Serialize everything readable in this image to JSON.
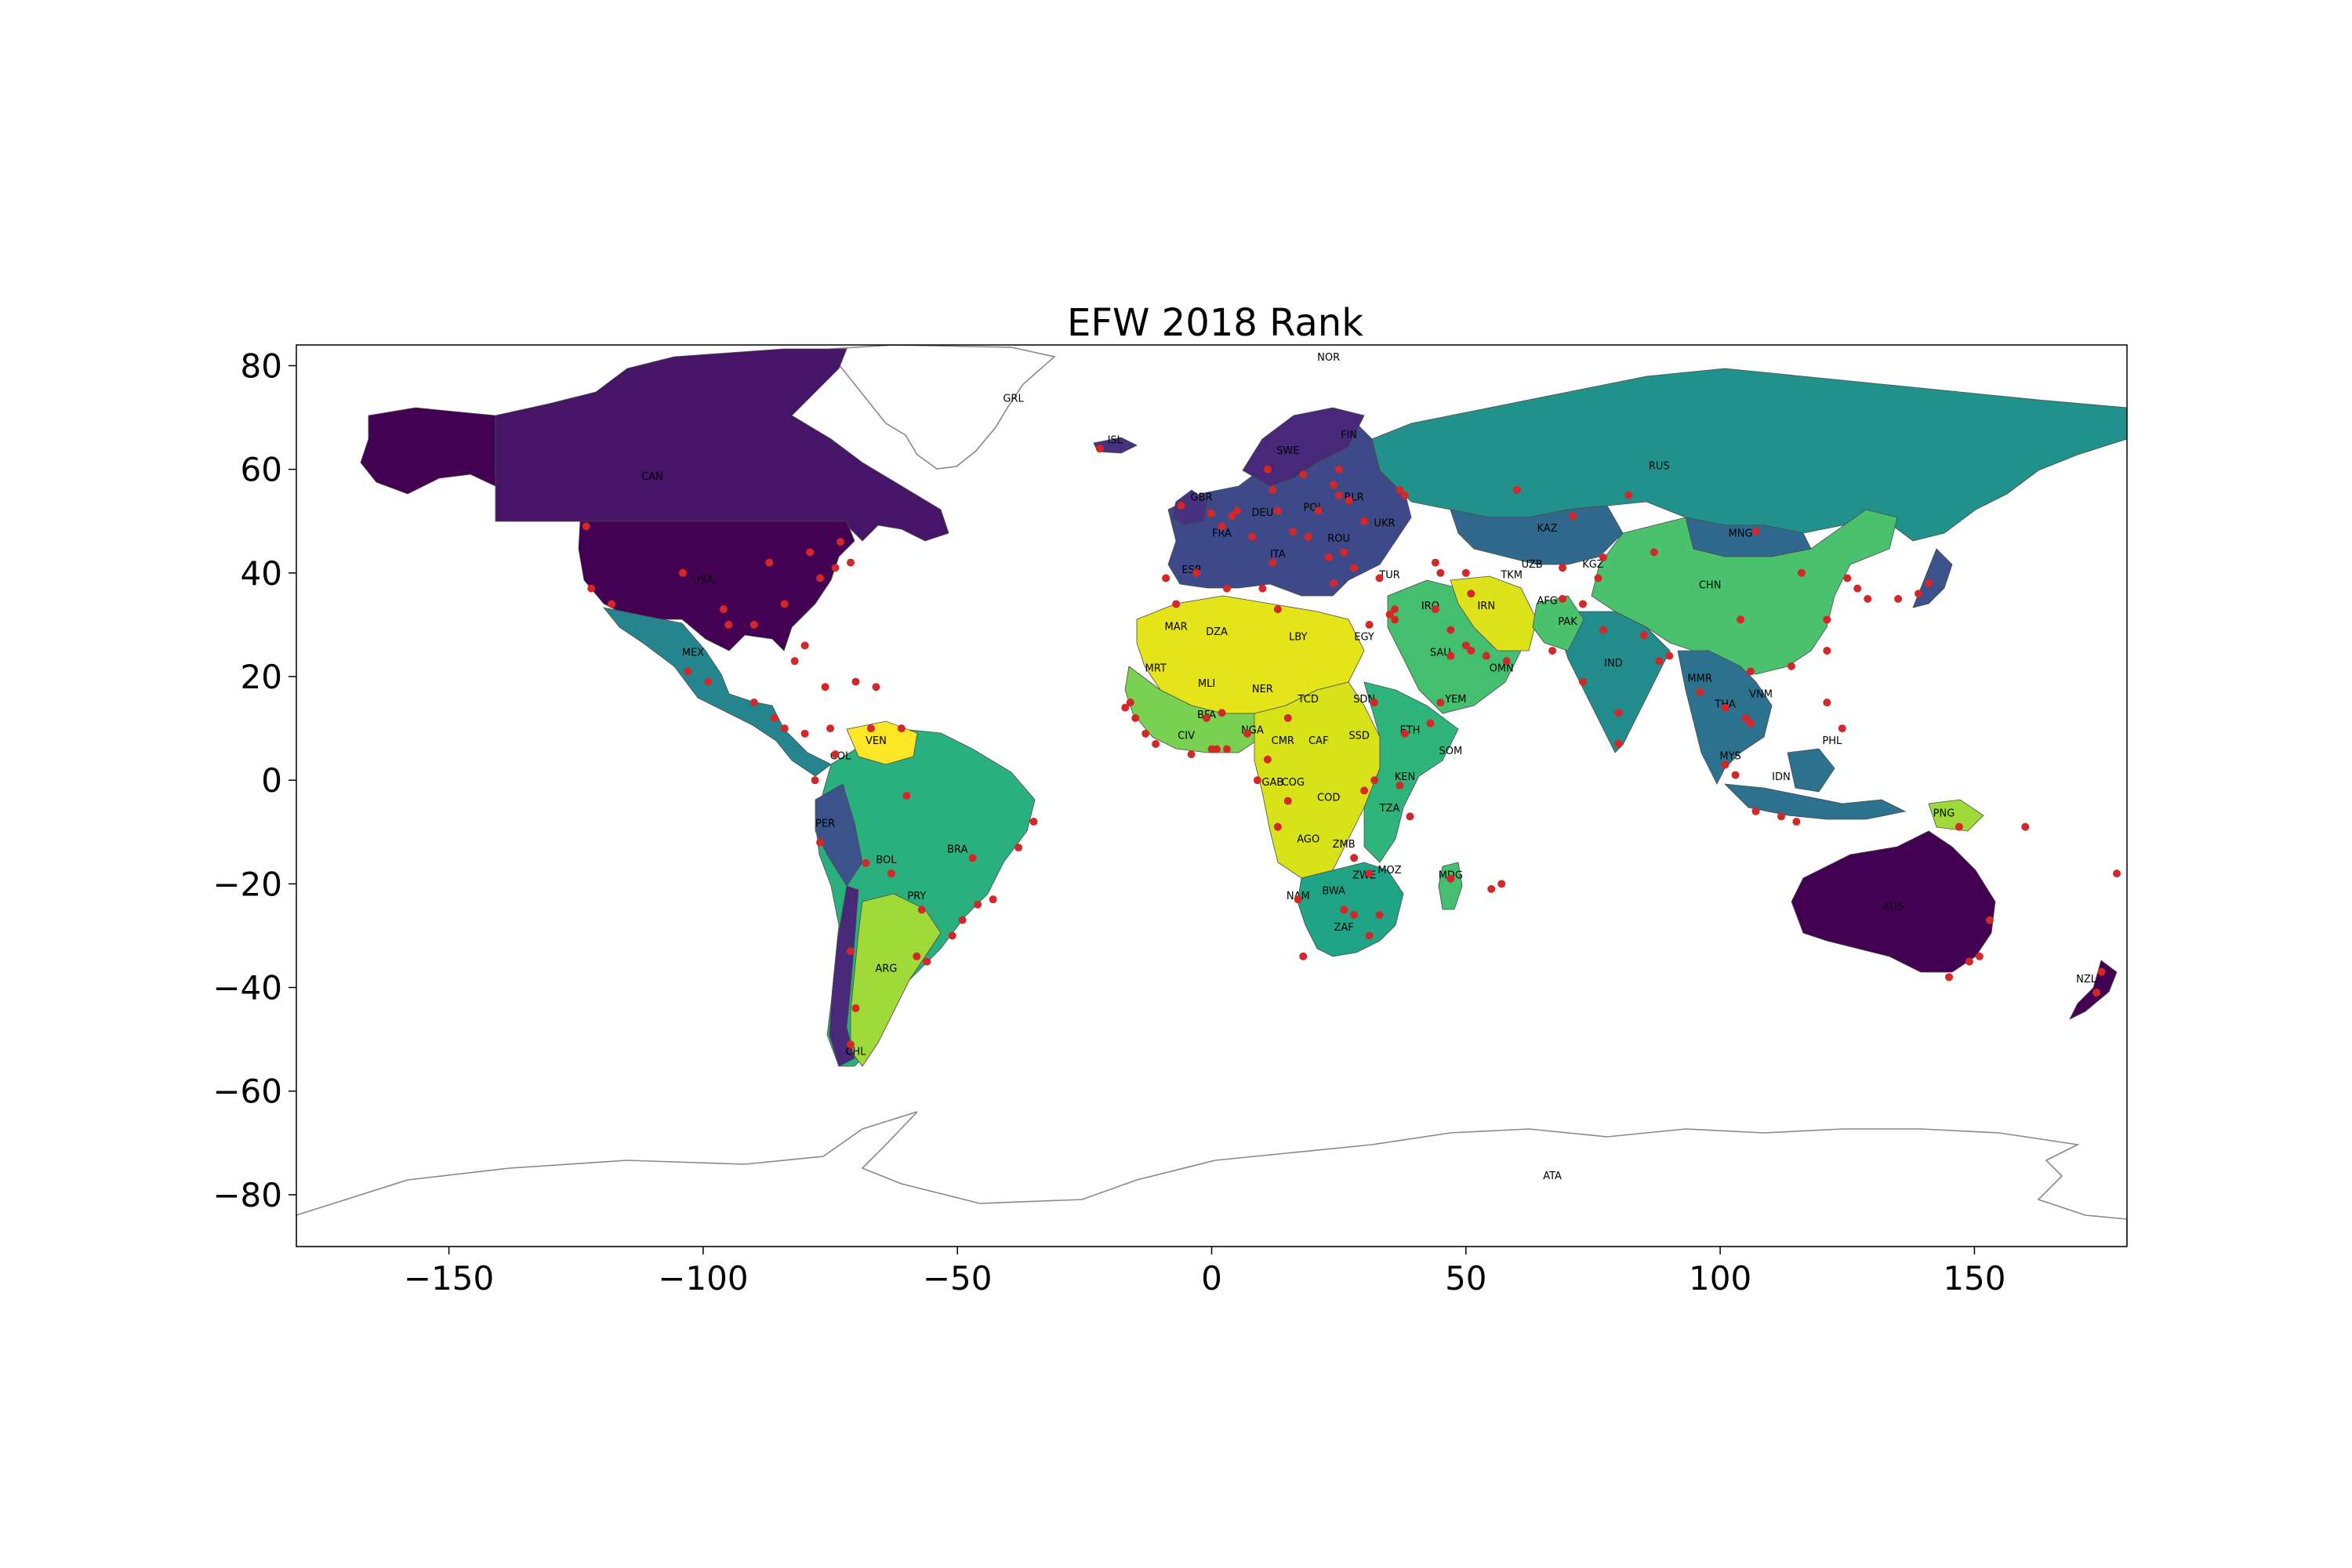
{
  "chart_data": {
    "type": "map",
    "title": "EFW 2018 Rank",
    "xlabel": "",
    "ylabel": "",
    "xlim": [
      -180,
      180
    ],
    "ylim": [
      -90,
      84
    ],
    "x_ticks": [
      -150,
      -100,
      -50,
      0,
      50,
      100,
      150
    ],
    "y_ticks": [
      80,
      60,
      40,
      20,
      0,
      -20,
      -40,
      -60,
      -80
    ],
    "x_tick_labels": [
      "−150",
      "−100",
      "−50",
      "0",
      "50",
      "100",
      "150"
    ],
    "y_tick_labels": [
      "80",
      "60",
      "40",
      "20",
      "0",
      "−20",
      "−40",
      "−60",
      "−80"
    ],
    "colormap": "viridis",
    "no_data_color": "#ffffff",
    "point_color": "#d62728",
    "country_labels": [
      {
        "code": "CAN",
        "lon": -110,
        "lat": 58
      },
      {
        "code": "USA",
        "lon": -100,
        "lat": 38
      },
      {
        "code": "MEX",
        "lon": -102,
        "lat": 24
      },
      {
        "code": "GRL",
        "lon": -39,
        "lat": 73
      },
      {
        "code": "ISL",
        "lon": -19,
        "lat": 65
      },
      {
        "code": "NOR",
        "lon": 23,
        "lat": 81
      },
      {
        "code": "SWE",
        "lon": 15,
        "lat": 63
      },
      {
        "code": "FIN",
        "lon": 27,
        "lat": 66
      },
      {
        "code": "GBR",
        "lon": -2,
        "lat": 54
      },
      {
        "code": "FRA",
        "lon": 2,
        "lat": 47
      },
      {
        "code": "DEU",
        "lon": 10,
        "lat": 51
      },
      {
        "code": "POL",
        "lon": 20,
        "lat": 52
      },
      {
        "code": "BLR",
        "lon": 28,
        "lat": 54
      },
      {
        "code": "UKR",
        "lon": 34,
        "lat": 49
      },
      {
        "code": "ROU",
        "lon": 25,
        "lat": 46
      },
      {
        "code": "ITA",
        "lon": 13,
        "lat": 43
      },
      {
        "code": "ESP",
        "lon": -4,
        "lat": 40
      },
      {
        "code": "TUR",
        "lon": 35,
        "lat": 39
      },
      {
        "code": "RUS",
        "lon": 88,
        "lat": 60
      },
      {
        "code": "KAZ",
        "lon": 66,
        "lat": 48
      },
      {
        "code": "MNG",
        "lon": 104,
        "lat": 47
      },
      {
        "code": "CHN",
        "lon": 98,
        "lat": 37
      },
      {
        "code": "UZB",
        "lon": 63,
        "lat": 41
      },
      {
        "code": "TKM",
        "lon": 59,
        "lat": 39
      },
      {
        "code": "KGZ",
        "lon": 75,
        "lat": 41
      },
      {
        "code": "AFG",
        "lon": 66,
        "lat": 34
      },
      {
        "code": "PAK",
        "lon": 70,
        "lat": 30
      },
      {
        "code": "IRN",
        "lon": 54,
        "lat": 33
      },
      {
        "code": "IRQ",
        "lon": 43,
        "lat": 33
      },
      {
        "code": "SAU",
        "lon": 45,
        "lat": 24
      },
      {
        "code": "OMN",
        "lon": 57,
        "lat": 21
      },
      {
        "code": "YEM",
        "lon": 48,
        "lat": 15
      },
      {
        "code": "IND",
        "lon": 79,
        "lat": 22
      },
      {
        "code": "MMR",
        "lon": 96,
        "lat": 19
      },
      {
        "code": "THA",
        "lon": 101,
        "lat": 14
      },
      {
        "code": "VNM",
        "lon": 108,
        "lat": 16
      },
      {
        "code": "PHL",
        "lon": 122,
        "lat": 7
      },
      {
        "code": "MYS",
        "lon": 102,
        "lat": 4
      },
      {
        "code": "IDN",
        "lon": 112,
        "lat": 0
      },
      {
        "code": "PNG",
        "lon": 144,
        "lat": -7
      },
      {
        "code": "AUS",
        "lon": 134,
        "lat": -25
      },
      {
        "code": "NZL",
        "lon": 172,
        "lat": -39
      },
      {
        "code": "MAR",
        "lon": -7,
        "lat": 29
      },
      {
        "code": "DZA",
        "lon": 1,
        "lat": 28
      },
      {
        "code": "LBY",
        "lon": 17,
        "lat": 27
      },
      {
        "code": "EGY",
        "lon": 30,
        "lat": 27
      },
      {
        "code": "MRT",
        "lon": -11,
        "lat": 21
      },
      {
        "code": "MLI",
        "lon": -1,
        "lat": 18
      },
      {
        "code": "NER",
        "lon": 10,
        "lat": 17
      },
      {
        "code": "TCD",
        "lon": 19,
        "lat": 15
      },
      {
        "code": "SDN",
        "lon": 30,
        "lat": 15
      },
      {
        "code": "ETH",
        "lon": 39,
        "lat": 9
      },
      {
        "code": "SOM",
        "lon": 47,
        "lat": 5
      },
      {
        "code": "SSD",
        "lon": 29,
        "lat": 8
      },
      {
        "code": "BFA",
        "lon": -1,
        "lat": 12
      },
      {
        "code": "CIV",
        "lon": -5,
        "lat": 8
      },
      {
        "code": "NGA",
        "lon": 8,
        "lat": 9
      },
      {
        "code": "CMR",
        "lon": 14,
        "lat": 7
      },
      {
        "code": "CAF",
        "lon": 21,
        "lat": 7
      },
      {
        "code": "GAB",
        "lon": 12,
        "lat": -1
      },
      {
        "code": "COG",
        "lon": 16,
        "lat": -1
      },
      {
        "code": "COD",
        "lon": 23,
        "lat": -4
      },
      {
        "code": "KEN",
        "lon": 38,
        "lat": 0
      },
      {
        "code": "TZA",
        "lon": 35,
        "lat": -6
      },
      {
        "code": "AGO",
        "lon": 19,
        "lat": -12
      },
      {
        "code": "ZMB",
        "lon": 26,
        "lat": -13
      },
      {
        "code": "MOZ",
        "lon": 35,
        "lat": -18
      },
      {
        "code": "ZWE",
        "lon": 30,
        "lat": -19
      },
      {
        "code": "MDG",
        "lon": 47,
        "lat": -19
      },
      {
        "code": "NAM",
        "lon": 17,
        "lat": -23
      },
      {
        "code": "BWA",
        "lon": 24,
        "lat": -22
      },
      {
        "code": "ZAF",
        "lon": 26,
        "lat": -29
      },
      {
        "code": "VEN",
        "lon": -66,
        "lat": 7
      },
      {
        "code": "COL",
        "lon": -73,
        "lat": 4
      },
      {
        "code": "PER",
        "lon": -76,
        "lat": -9
      },
      {
        "code": "BRA",
        "lon": -50,
        "lat": -14
      },
      {
        "code": "BOL",
        "lon": -64,
        "lat": -16
      },
      {
        "code": "PRY",
        "lon": -58,
        "lat": -23
      },
      {
        "code": "ARG",
        "lon": -64,
        "lat": -37
      },
      {
        "code": "CHL",
        "lon": -70,
        "lat": -53
      },
      {
        "code": "ATA",
        "lon": 67,
        "lat": -77
      }
    ],
    "points": [
      {
        "lon": -123,
        "lat": 49
      },
      {
        "lon": -122,
        "lat": 37
      },
      {
        "lon": -118,
        "lat": 34
      },
      {
        "lon": -104,
        "lat": 40
      },
      {
        "lon": -96,
        "lat": 33
      },
      {
        "lon": -95,
        "lat": 30
      },
      {
        "lon": -90,
        "lat": 30
      },
      {
        "lon": -87,
        "lat": 42
      },
      {
        "lon": -84,
        "lat": 34
      },
      {
        "lon": -80,
        "lat": 26
      },
      {
        "lon": -77,
        "lat": 39
      },
      {
        "lon": -74,
        "lat": 41
      },
      {
        "lon": -71,
        "lat": 42
      },
      {
        "lon": -79,
        "lat": 44
      },
      {
        "lon": -73,
        "lat": 46
      },
      {
        "lon": -99,
        "lat": 19
      },
      {
        "lon": -103,
        "lat": 21
      },
      {
        "lon": -90,
        "lat": 15
      },
      {
        "lon": -86,
        "lat": 12
      },
      {
        "lon": -84,
        "lat": 10
      },
      {
        "lon": -80,
        "lat": 9
      },
      {
        "lon": -76,
        "lat": 18
      },
      {
        "lon": -70,
        "lat": 19
      },
      {
        "lon": -66,
        "lat": 18
      },
      {
        "lon": -82,
        "lat": 23
      },
      {
        "lon": -74,
        "lat": 5
      },
      {
        "lon": -75,
        "lat": 10
      },
      {
        "lon": -67,
        "lat": 10
      },
      {
        "lon": -61,
        "lat": 10
      },
      {
        "lon": -78,
        "lat": 0
      },
      {
        "lon": -77,
        "lat": -12
      },
      {
        "lon": -68,
        "lat": -16
      },
      {
        "lon": -63,
        "lat": -18
      },
      {
        "lon": -57,
        "lat": -25
      },
      {
        "lon": -56,
        "lat": -35
      },
      {
        "lon": -58,
        "lat": -34
      },
      {
        "lon": -71,
        "lat": -33
      },
      {
        "lon": -47,
        "lat": -15
      },
      {
        "lon": -43,
        "lat": -23
      },
      {
        "lon": -46,
        "lat": -24
      },
      {
        "lon": -38,
        "lat": -13
      },
      {
        "lon": -35,
        "lat": -8
      },
      {
        "lon": -60,
        "lat": -3
      },
      {
        "lon": -51,
        "lat": -30
      },
      {
        "lon": -49,
        "lat": -27
      },
      {
        "lon": -70,
        "lat": -44
      },
      {
        "lon": -71,
        "lat": -51
      },
      {
        "lon": -22,
        "lat": 64
      },
      {
        "lon": -0.1,
        "lat": 51.5
      },
      {
        "lon": -6,
        "lat": 53
      },
      {
        "lon": -3,
        "lat": 40
      },
      {
        "lon": -9,
        "lat": 39
      },
      {
        "lon": 2,
        "lat": 49
      },
      {
        "lon": 4,
        "lat": 51
      },
      {
        "lon": 5,
        "lat": 52
      },
      {
        "lon": 13,
        "lat": 52
      },
      {
        "lon": 8,
        "lat": 47
      },
      {
        "lon": 12,
        "lat": 42
      },
      {
        "lon": 16,
        "lat": 48
      },
      {
        "lon": 21,
        "lat": 52
      },
      {
        "lon": 19,
        "lat": 47
      },
      {
        "lon": 26,
        "lat": 44
      },
      {
        "lon": 23,
        "lat": 43
      },
      {
        "lon": 24,
        "lat": 38
      },
      {
        "lon": 28,
        "lat": 41
      },
      {
        "lon": 33,
        "lat": 39
      },
      {
        "lon": 30,
        "lat": 50
      },
      {
        "lon": 27,
        "lat": 54
      },
      {
        "lon": 18,
        "lat": 59
      },
      {
        "lon": 11,
        "lat": 60
      },
      {
        "lon": 25,
        "lat": 60
      },
      {
        "lon": 12,
        "lat": 56
      },
      {
        "lon": 24,
        "lat": 57
      },
      {
        "lon": 25,
        "lat": 55
      },
      {
        "lon": 37,
        "lat": 56
      },
      {
        "lon": 44,
        "lat": 42
      },
      {
        "lon": 45,
        "lat": 40
      },
      {
        "lon": 50,
        "lat": 40
      },
      {
        "lon": 36,
        "lat": 33
      },
      {
        "lon": 35,
        "lat": 32
      },
      {
        "lon": 36,
        "lat": 31
      },
      {
        "lon": 44,
        "lat": 33
      },
      {
        "lon": 51,
        "lat": 36
      },
      {
        "lon": 47,
        "lat": 29
      },
      {
        "lon": 50,
        "lat": 26
      },
      {
        "lon": 51,
        "lat": 25
      },
      {
        "lon": 54,
        "lat": 24
      },
      {
        "lon": 58,
        "lat": 23
      },
      {
        "lon": 47,
        "lat": 24
      },
      {
        "lon": 45,
        "lat": 15
      },
      {
        "lon": 31,
        "lat": 30
      },
      {
        "lon": 13,
        "lat": 33
      },
      {
        "lon": 10,
        "lat": 37
      },
      {
        "lon": 3,
        "lat": 37
      },
      {
        "lon": -7,
        "lat": 34
      },
      {
        "lon": -16,
        "lat": 15
      },
      {
        "lon": -17,
        "lat": 14
      },
      {
        "lon": -15,
        "lat": 12
      },
      {
        "lon": -13,
        "lat": 9
      },
      {
        "lon": -11,
        "lat": 7
      },
      {
        "lon": -4,
        "lat": 5
      },
      {
        "lon": -1,
        "lat": 12
      },
      {
        "lon": 2,
        "lat": 13
      },
      {
        "lon": 0,
        "lat": 6
      },
      {
        "lon": 1,
        "lat": 6
      },
      {
        "lon": 3,
        "lat": 6
      },
      {
        "lon": 7,
        "lat": 9
      },
      {
        "lon": 11,
        "lat": 4
      },
      {
        "lon": 15,
        "lat": 12
      },
      {
        "lon": 9,
        "lat": 0
      },
      {
        "lon": 15,
        "lat": -4
      },
      {
        "lon": 32,
        "lat": 15
      },
      {
        "lon": 38,
        "lat": 9
      },
      {
        "lon": 43,
        "lat": 11
      },
      {
        "lon": 37,
        "lat": -1
      },
      {
        "lon": 32,
        "lat": 0
      },
      {
        "lon": 30,
        "lat": -2
      },
      {
        "lon": 39,
        "lat": -7
      },
      {
        "lon": 13,
        "lat": -9
      },
      {
        "lon": 28,
        "lat": -15
      },
      {
        "lon": 31,
        "lat": -18
      },
      {
        "lon": 33,
        "lat": -26
      },
      {
        "lon": 17,
        "lat": -23
      },
      {
        "lon": 26,
        "lat": -25
      },
      {
        "lon": 28,
        "lat": -26
      },
      {
        "lon": 18,
        "lat": -34
      },
      {
        "lon": 31,
        "lat": -30
      },
      {
        "lon": 47,
        "lat": -19
      },
      {
        "lon": 57,
        "lat": -20
      },
      {
        "lon": 55,
        "lat": -21
      },
      {
        "lon": 69,
        "lat": 35
      },
      {
        "lon": 73,
        "lat": 34
      },
      {
        "lon": 67,
        "lat": 25
      },
      {
        "lon": 77,
        "lat": 29
      },
      {
        "lon": 73,
        "lat": 19
      },
      {
        "lon": 80,
        "lat": 13
      },
      {
        "lon": 88,
        "lat": 23
      },
      {
        "lon": 80,
        "lat": 7
      },
      {
        "lon": 85,
        "lat": 28
      },
      {
        "lon": 90,
        "lat": 24
      },
      {
        "lon": 96,
        "lat": 17
      },
      {
        "lon": 101,
        "lat": 14
      },
      {
        "lon": 106,
        "lat": 11
      },
      {
        "lon": 106,
        "lat": 21
      },
      {
        "lon": 105,
        "lat": 12
      },
      {
        "lon": 103,
        "lat": 1
      },
      {
        "lon": 101,
        "lat": 3
      },
      {
        "lon": 107,
        "lat": -6
      },
      {
        "lon": 112,
        "lat": -7
      },
      {
        "lon": 115,
        "lat": -8
      },
      {
        "lon": 121,
        "lat": 15
      },
      {
        "lon": 124,
        "lat": 10
      },
      {
        "lon": 121,
        "lat": 25
      },
      {
        "lon": 114,
        "lat": 22
      },
      {
        "lon": 121,
        "lat": 31
      },
      {
        "lon": 116,
        "lat": 40
      },
      {
        "lon": 104,
        "lat": 31
      },
      {
        "lon": 87,
        "lat": 44
      },
      {
        "lon": 127,
        "lat": 37
      },
      {
        "lon": 129,
        "lat": 35
      },
      {
        "lon": 135,
        "lat": 35
      },
      {
        "lon": 139,
        "lat": 36
      },
      {
        "lon": 141,
        "lat": 38
      },
      {
        "lon": 125,
        "lat": 39
      },
      {
        "lon": 71,
        "lat": 51
      },
      {
        "lon": 77,
        "lat": 43
      },
      {
        "lon": 69,
        "lat": 41
      },
      {
        "lon": 107,
        "lat": 48
      },
      {
        "lon": 76,
        "lat": 39
      },
      {
        "lon": 147,
        "lat": -9
      },
      {
        "lon": 151,
        "lat": -34
      },
      {
        "lon": 145,
        "lat": -38
      },
      {
        "lon": 153,
        "lat": -27
      },
      {
        "lon": 149,
        "lat": -35
      },
      {
        "lon": 174,
        "lat": -41
      },
      {
        "lon": 175,
        "lat": -37
      },
      {
        "lon": 178,
        "lat": -18
      },
      {
        "lon": 160,
        "lat": -9
      },
      {
        "lon": 38,
        "lat": 55
      },
      {
        "lon": 82,
        "lat": 55
      },
      {
        "lon": 60,
        "lat": 56
      }
    ],
    "regions": [
      {
        "name": "CAN-region",
        "rank_bucket": 1,
        "label": "CAN"
      },
      {
        "name": "USA-region",
        "rank_bucket": 0,
        "label": "USA"
      },
      {
        "name": "AUS-region",
        "rank_bucket": 0,
        "label": "AUS"
      }
    ]
  }
}
